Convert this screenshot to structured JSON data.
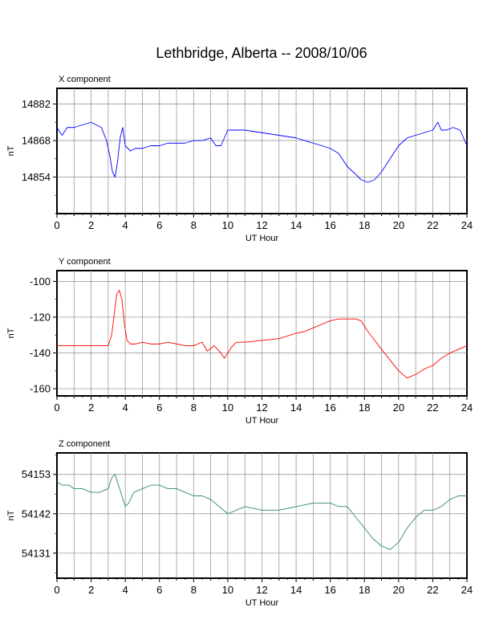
{
  "title": "Lethbridge, Alberta -- 2008/10/06",
  "chart_data": [
    {
      "type": "line",
      "panel_label": "X component",
      "ylabel": "nT",
      "xlabel": "UT Hour",
      "xlim": [
        0,
        24
      ],
      "ylim": [
        14840,
        14888
      ],
      "xticks": [
        0,
        2,
        4,
        6,
        8,
        10,
        12,
        14,
        16,
        18,
        20,
        22,
        24
      ],
      "xtick_labels": [
        "0",
        "2",
        "4",
        "6",
        "8",
        "10",
        "12",
        "14",
        "16",
        "18",
        "20",
        "22",
        "24"
      ],
      "yticks": [
        14854,
        14868,
        14882
      ],
      "ytick_labels": [
        "14854",
        "14868",
        "14882"
      ],
      "grid": true,
      "color": "#0000ff",
      "x": [
        0,
        0.3,
        0.6,
        1.0,
        1.5,
        2.0,
        2.3,
        2.6,
        2.9,
        3.1,
        3.25,
        3.4,
        3.55,
        3.7,
        3.85,
        4.0,
        4.3,
        4.6,
        5.0,
        5.5,
        6.0,
        6.5,
        7.0,
        7.5,
        8.0,
        8.5,
        9.0,
        9.3,
        9.6,
        10.0,
        10.5,
        11.0,
        12.0,
        13.0,
        14.0,
        15.0,
        15.5,
        16.0,
        16.5,
        17.0,
        17.5,
        17.8,
        18.2,
        18.6,
        19.0,
        19.5,
        20.0,
        20.5,
        21.0,
        21.5,
        22.0,
        22.3,
        22.5,
        22.8,
        23.2,
        23.6,
        23.8,
        24.0
      ],
      "y": [
        14873,
        14870,
        14873,
        14873,
        14874,
        14875,
        14874,
        14873,
        14868,
        14862,
        14856,
        14854,
        14860,
        14869,
        14873,
        14866,
        14864,
        14865,
        14865,
        14866,
        14866,
        14867,
        14867,
        14867,
        14868,
        14868,
        14869,
        14866,
        14866,
        14872,
        14872,
        14872,
        14871,
        14870,
        14869,
        14867,
        14866,
        14865,
        14863,
        14858,
        14855,
        14853,
        14852,
        14853,
        14856,
        14861,
        14866,
        14869,
        14870,
        14871,
        14872,
        14875,
        14872,
        14872,
        14873,
        14872,
        14869,
        14866
      ]
    },
    {
      "type": "line",
      "panel_label": "Y component",
      "ylabel": "nT",
      "xlabel": "UT Hour",
      "xlim": [
        0,
        24
      ],
      "ylim": [
        -164,
        -94
      ],
      "xticks": [
        0,
        2,
        4,
        6,
        8,
        10,
        12,
        14,
        16,
        18,
        20,
        22,
        24
      ],
      "xtick_labels": [
        "0",
        "2",
        "4",
        "6",
        "8",
        "10",
        "12",
        "14",
        "16",
        "18",
        "20",
        "22",
        "24"
      ],
      "yticks": [
        -160,
        -140,
        -120,
        -100
      ],
      "ytick_labels": [
        "-160",
        "-140",
        "-120",
        "-100"
      ],
      "grid": true,
      "color": "#ff0000",
      "x": [
        0,
        0.5,
        1.0,
        1.5,
        2.0,
        2.5,
        3.0,
        3.2,
        3.4,
        3.5,
        3.65,
        3.8,
        3.95,
        4.1,
        4.3,
        4.6,
        5.0,
        5.5,
        6.0,
        6.5,
        7.0,
        7.5,
        8.0,
        8.5,
        8.8,
        9.2,
        9.6,
        9.8,
        10.2,
        10.5,
        11.0,
        12.0,
        13.0,
        14.0,
        14.5,
        15.0,
        15.5,
        16.0,
        16.5,
        17.0,
        17.5,
        17.8,
        18.2,
        18.6,
        19.0,
        19.5,
        20.0,
        20.5,
        21.0,
        21.5,
        22.0,
        22.5,
        23.0,
        23.5,
        24.0
      ],
      "y": [
        -136,
        -136,
        -136,
        -136,
        -136,
        -136,
        -136,
        -130,
        -115,
        -107,
        -105,
        -110,
        -124,
        -133,
        -135,
        -135,
        -134,
        -135,
        -135,
        -134,
        -135,
        -136,
        -136,
        -134,
        -139,
        -136,
        -140,
        -143,
        -137,
        -134,
        -134,
        -133,
        -132,
        -129,
        -128,
        -126,
        -124,
        -122,
        -121,
        -121,
        -121,
        -122,
        -128,
        -133,
        -138,
        -144,
        -150,
        -154,
        -152,
        -149,
        -147,
        -143,
        -140,
        -138,
        -136
      ]
    },
    {
      "type": "line",
      "panel_label": "Z component",
      "ylabel": "nT",
      "xlabel": "UT Hour",
      "xlim": [
        0,
        24
      ],
      "ylim": [
        54124,
        54159
      ],
      "xticks": [
        0,
        2,
        4,
        6,
        8,
        10,
        12,
        14,
        16,
        18,
        20,
        22,
        24
      ],
      "xtick_labels": [
        "0",
        "2",
        "4",
        "6",
        "8",
        "10",
        "12",
        "14",
        "16",
        "18",
        "20",
        "22",
        "24"
      ],
      "yticks": [
        54131,
        54142,
        54153
      ],
      "ytick_labels": [
        "54131",
        "54142",
        "54153"
      ],
      "grid": true,
      "color": "#2e8b57",
      "x": [
        0,
        0.3,
        0.7,
        1.0,
        1.5,
        2.0,
        2.5,
        3.0,
        3.2,
        3.4,
        3.6,
        3.8,
        4.0,
        4.2,
        4.5,
        5.0,
        5.5,
        6.0,
        6.5,
        7.0,
        7.5,
        8.0,
        8.5,
        9.0,
        9.5,
        10.0,
        10.5,
        11.0,
        12.0,
        13.0,
        14.0,
        15.0,
        15.5,
        16.0,
        16.5,
        17.0,
        17.5,
        18.0,
        18.5,
        19.0,
        19.5,
        20.0,
        20.5,
        21.0,
        21.5,
        22.0,
        22.5,
        23.0,
        23.5,
        24.0
      ],
      "y": [
        54151,
        54150,
        54150,
        54149,
        54149,
        54148,
        54148,
        54149,
        54152,
        54153,
        54150,
        54147,
        54144,
        54145,
        54148,
        54149,
        54150,
        54150,
        54149,
        54149,
        54148,
        54147,
        54147,
        54146,
        54144,
        54142,
        54143,
        54144,
        54143,
        54143,
        54144,
        54145,
        54145,
        54145,
        54144,
        54144,
        54141,
        54138,
        54135,
        54133,
        54132,
        54134,
        54138,
        54141,
        54143,
        54143,
        54144,
        54146,
        54147,
        54147
      ]
    }
  ]
}
